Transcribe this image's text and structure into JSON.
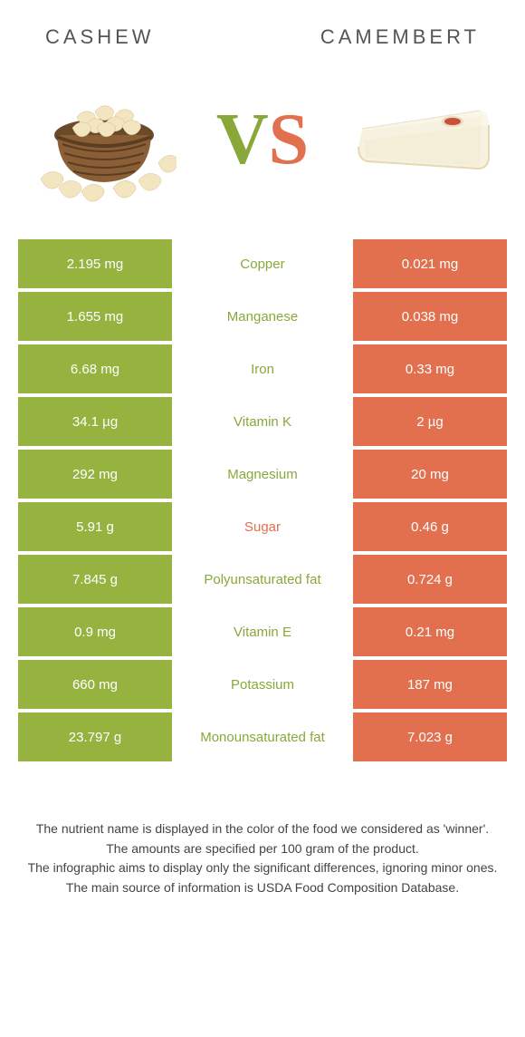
{
  "header": {
    "left": "Cashew",
    "right": "Camembert"
  },
  "vs": {
    "v": "V",
    "s": "S"
  },
  "colors": {
    "cashew": "#96b23f",
    "camembert": "#e2704f",
    "nutrient_cashew": "#8aa83a",
    "nutrient_camembert": "#e2704f",
    "footer_text": "#444444"
  },
  "table": {
    "rows": [
      {
        "left": "2.195 mg",
        "mid": "Copper",
        "right": "0.021 mg",
        "winner": "cashew"
      },
      {
        "left": "1.655 mg",
        "mid": "Manganese",
        "right": "0.038 mg",
        "winner": "cashew"
      },
      {
        "left": "6.68 mg",
        "mid": "Iron",
        "right": "0.33 mg",
        "winner": "cashew"
      },
      {
        "left": "34.1 µg",
        "mid": "Vitamin K",
        "right": "2 µg",
        "winner": "cashew"
      },
      {
        "left": "292 mg",
        "mid": "Magnesium",
        "right": "20 mg",
        "winner": "cashew"
      },
      {
        "left": "5.91 g",
        "mid": "Sugar",
        "right": "0.46 g",
        "winner": "camembert"
      },
      {
        "left": "7.845 g",
        "mid": "Polyunsaturated fat",
        "right": "0.724 g",
        "winner": "cashew"
      },
      {
        "left": "0.9 mg",
        "mid": "Vitamin E",
        "right": "0.21 mg",
        "winner": "cashew"
      },
      {
        "left": "660 mg",
        "mid": "Potassium",
        "right": "187 mg",
        "winner": "cashew"
      },
      {
        "left": "23.797 g",
        "mid": "Monounsaturated fat",
        "right": "7.023 g",
        "winner": "cashew"
      }
    ]
  },
  "footer": {
    "line1": "The nutrient name is displayed in the color of the food we considered as 'winner'.",
    "line2": "The amounts are specified per 100 gram of the product.",
    "line3": "The infographic aims to display only the significant differences, ignoring minor ones.",
    "line4": "The main source of information is USDA Food Composition Database."
  }
}
